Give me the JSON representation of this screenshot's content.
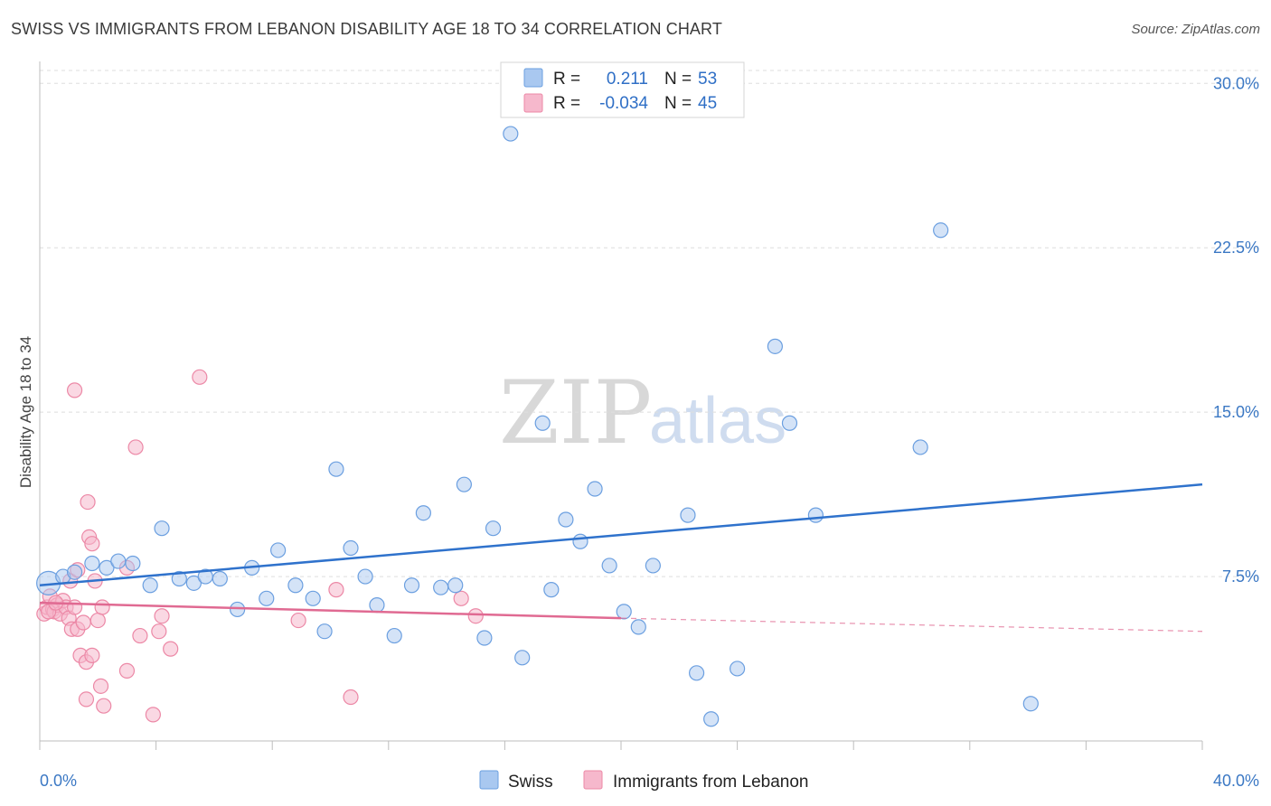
{
  "header": {
    "title": "SWISS VS IMMIGRANTS FROM LEBANON DISABILITY AGE 18 TO 34 CORRELATION CHART",
    "source": "Source: ZipAtlas.com"
  },
  "watermark": {
    "zip": "ZIP",
    "atlas": "atlas"
  },
  "legend_box": {
    "swiss": {
      "r_label": "R =",
      "r_value": "0.211",
      "n_label": "N =",
      "n_value": "53"
    },
    "lebanon": {
      "r_label": "R =",
      "r_value": "-0.034",
      "n_label": "N =",
      "n_value": "45"
    }
  },
  "bottom_legend": {
    "swiss": "Swiss",
    "lebanon": "Immigrants from Lebanon"
  },
  "colors": {
    "swiss_fill": "#a9c8f0",
    "swiss_stroke": "#6b9fe0",
    "swiss_line": "#2f72cc",
    "lebanon_fill": "#f6b8cc",
    "lebanon_stroke": "#ec88a6",
    "lebanon_line": "#e06a92",
    "grid": "#dedede",
    "axis_label": "#3b78c4"
  },
  "chart_data": {
    "type": "scatter",
    "title": "SWISS VS IMMIGRANTS FROM LEBANON DISABILITY AGE 18 TO 34 CORRELATION CHART",
    "xlabel": "",
    "ylabel": "Disability Age 18 to 34",
    "xlim": [
      0,
      40
    ],
    "ylim": [
      0,
      31
    ],
    "x_tick_labels": [
      "0.0%",
      "40.0%"
    ],
    "y_ticks": [
      7.5,
      15.0,
      22.5,
      30.0
    ],
    "y_tick_labels": [
      "7.5%",
      "15.0%",
      "22.5%",
      "30.0%"
    ],
    "grid": true,
    "legend_position": "top-center",
    "series": [
      {
        "name": "Swiss",
        "r": 0.211,
        "n": 53,
        "trend": {
          "x": [
            0,
            40
          ],
          "y": [
            7.1,
            11.7
          ]
        },
        "points": [
          [
            0.3,
            7.2
          ],
          [
            0.8,
            7.5
          ],
          [
            1.2,
            7.7
          ],
          [
            1.8,
            8.1
          ],
          [
            2.3,
            7.9
          ],
          [
            2.7,
            8.2
          ],
          [
            3.2,
            8.1
          ],
          [
            3.8,
            7.1
          ],
          [
            4.2,
            9.7
          ],
          [
            4.8,
            7.4
          ],
          [
            5.3,
            7.2
          ],
          [
            5.7,
            7.5
          ],
          [
            6.2,
            7.4
          ],
          [
            6.8,
            6.0
          ],
          [
            7.3,
            7.9
          ],
          [
            7.8,
            6.5
          ],
          [
            8.2,
            8.7
          ],
          [
            8.8,
            7.1
          ],
          [
            9.4,
            6.5
          ],
          [
            9.8,
            5.0
          ],
          [
            10.2,
            12.4
          ],
          [
            10.7,
            8.8
          ],
          [
            11.2,
            7.5
          ],
          [
            11.6,
            6.2
          ],
          [
            12.2,
            4.8
          ],
          [
            12.8,
            7.1
          ],
          [
            13.2,
            10.4
          ],
          [
            13.8,
            7.0
          ],
          [
            14.3,
            7.1
          ],
          [
            14.6,
            11.7
          ],
          [
            15.3,
            4.7
          ],
          [
            15.6,
            9.7
          ],
          [
            16.2,
            27.7
          ],
          [
            16.6,
            3.8
          ],
          [
            17.3,
            14.5
          ],
          [
            17.6,
            6.9
          ],
          [
            18.1,
            10.1
          ],
          [
            18.6,
            9.1
          ],
          [
            19.1,
            11.5
          ],
          [
            19.6,
            8.0
          ],
          [
            20.1,
            5.9
          ],
          [
            20.6,
            5.2
          ],
          [
            21.1,
            8.0
          ],
          [
            22.3,
            10.3
          ],
          [
            22.6,
            3.1
          ],
          [
            23.1,
            1.0
          ],
          [
            24.0,
            3.3
          ],
          [
            25.3,
            18.0
          ],
          [
            25.8,
            14.5
          ],
          [
            26.7,
            10.3
          ],
          [
            30.3,
            13.4
          ],
          [
            31.0,
            23.3
          ],
          [
            34.1,
            1.7
          ]
        ]
      },
      {
        "name": "Immigrants from Lebanon",
        "r": -0.034,
        "n": 45,
        "trend": {
          "x": [
            0,
            20
          ],
          "y": [
            6.3,
            5.6
          ]
        },
        "trend_dashed": {
          "x": [
            20,
            40
          ],
          "y": [
            5.6,
            5.0
          ]
        },
        "points": [
          [
            0.15,
            5.8
          ],
          [
            0.25,
            6.1
          ],
          [
            0.35,
            6.6
          ],
          [
            0.45,
            6.0
          ],
          [
            0.5,
            5.9
          ],
          [
            0.6,
            6.2
          ],
          [
            0.7,
            5.8
          ],
          [
            0.8,
            6.4
          ],
          [
            0.9,
            6.1
          ],
          [
            1.0,
            5.6
          ],
          [
            1.05,
            7.3
          ],
          [
            1.1,
            5.1
          ],
          [
            1.2,
            6.1
          ],
          [
            1.3,
            5.1
          ],
          [
            1.2,
            16.0
          ],
          [
            1.3,
            7.8
          ],
          [
            1.4,
            3.9
          ],
          [
            1.5,
            5.4
          ],
          [
            1.6,
            3.6
          ],
          [
            1.6,
            1.9
          ],
          [
            1.65,
            10.9
          ],
          [
            1.7,
            9.3
          ],
          [
            1.8,
            9.0
          ],
          [
            1.8,
            3.9
          ],
          [
            1.9,
            7.3
          ],
          [
            2.0,
            5.5
          ],
          [
            2.1,
            2.5
          ],
          [
            2.15,
            6.1
          ],
          [
            2.2,
            1.6
          ],
          [
            3.0,
            3.2
          ],
          [
            3.0,
            7.9
          ],
          [
            3.3,
            13.4
          ],
          [
            3.45,
            4.8
          ],
          [
            3.9,
            1.2
          ],
          [
            4.1,
            5.0
          ],
          [
            4.2,
            5.7
          ],
          [
            4.5,
            4.2
          ],
          [
            5.5,
            16.6
          ],
          [
            8.9,
            5.5
          ],
          [
            10.2,
            6.9
          ],
          [
            10.7,
            2.0
          ],
          [
            14.5,
            6.5
          ],
          [
            15.0,
            5.7
          ],
          [
            0.3,
            5.9
          ],
          [
            0.55,
            6.3
          ]
        ]
      }
    ]
  }
}
